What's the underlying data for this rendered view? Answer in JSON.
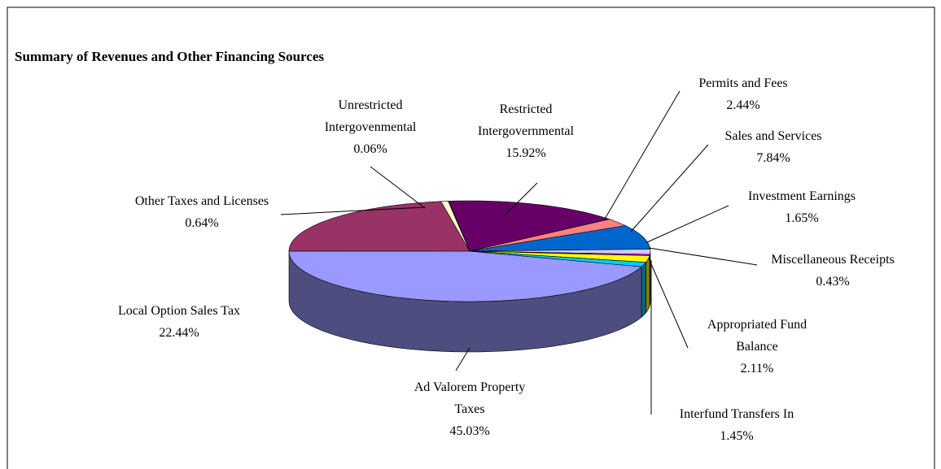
{
  "chart_data": {
    "type": "pie3d",
    "title": "Summary of Revenues and Other Financing Sources",
    "categories": [
      "Ad Valorem Property Taxes",
      "Local Option Sales Tax",
      "Other Taxes and Licenses",
      "Unrestricted Intergovenmental",
      "Restricted Intergovernmental",
      "Permits and Fees",
      "Sales and Services",
      "Investment Earnings",
      "Miscellaneous Receipts",
      "Appropriated Fund Balance",
      "Interfund Transfers In"
    ],
    "values": [
      45.03,
      22.44,
      0.64,
      0.06,
      15.92,
      2.44,
      7.84,
      1.65,
      0.43,
      2.11,
      1.45
    ],
    "value_labels": [
      "45.03%",
      "22.44%",
      "0.64%",
      "0.06%",
      "15.92%",
      "2.44%",
      "7.84%",
      "1.65%",
      "0.43%",
      "2.11%",
      "1.45%"
    ],
    "colors": [
      "#9999ff",
      "#993366",
      "#ffffcc",
      "#ccffff",
      "#660066",
      "#ff8080",
      "#0066cc",
      "#ccccff",
      "#ff00ff",
      "#ffff00",
      "#00ccff"
    ]
  }
}
